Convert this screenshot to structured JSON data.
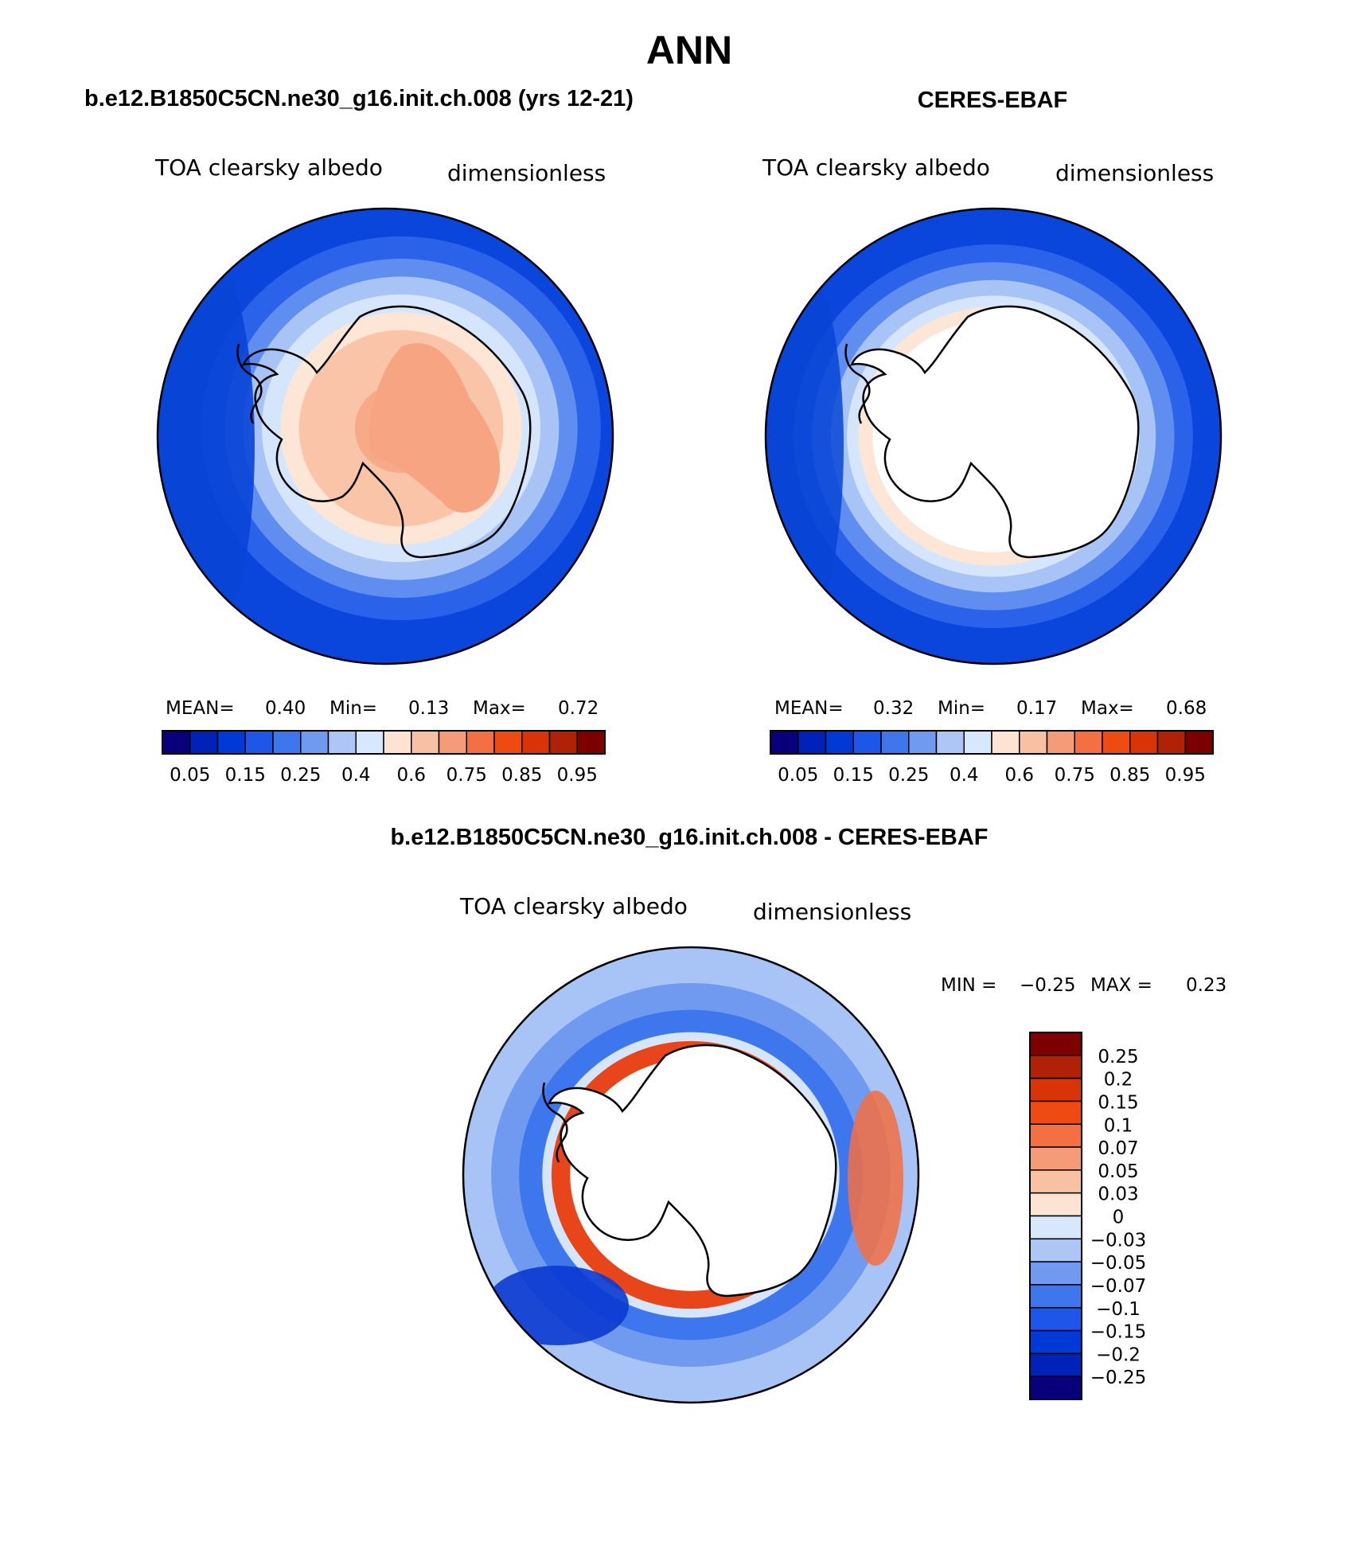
{
  "page": {
    "title": "ANN"
  },
  "panels": [
    {
      "id": "model",
      "header": "b.e12.B1850C5CN.ne30_g16.init.ch.008 (yrs 12-21)",
      "variable": "TOA clearsky albedo",
      "units": "dimensionless",
      "stats": {
        "mean_label": "MEAN=",
        "mean": "0.40",
        "min_label": "Min=",
        "min": "0.13",
        "max_label": "Max=",
        "max": "0.72"
      },
      "colorbar": {
        "orientation": "horizontal",
        "colors": [
          "#08007a",
          "#0022b8",
          "#0039d6",
          "#1f56ea",
          "#3e76ee",
          "#6f9af0",
          "#adc6f5",
          "#d8e8fc",
          "#fde3d2",
          "#f9c1a4",
          "#f69b78",
          "#f46f42",
          "#ed4b12",
          "#d93407",
          "#b02108",
          "#7c0000"
        ],
        "labels": [
          "0.05",
          "0.15",
          "0.25",
          "0.4",
          "0.6",
          "0.75",
          "0.85",
          "0.95"
        ]
      },
      "field_rings": [
        {
          "r": 1.0,
          "color": "#0a46dc"
        },
        {
          "r": 0.86,
          "color": "#2a62ea"
        },
        {
          "r": 0.76,
          "color": "#5f8ef0"
        },
        {
          "r": 0.68,
          "color": "#a8c4f6"
        },
        {
          "r": 0.6,
          "color": "#d5e6fc"
        },
        {
          "r": 0.52,
          "color": "#fde6d5"
        },
        {
          "r": 0.44,
          "color": "#f9c4a8"
        },
        {
          "r": 0.2,
          "color": "#f6aa88"
        }
      ]
    },
    {
      "id": "obs",
      "header": "CERES-EBAF",
      "variable": "TOA clearsky albedo",
      "units": "dimensionless",
      "stats": {
        "mean_label": "MEAN=",
        "mean": "0.32",
        "min_label": "Min=",
        "min": "0.17",
        "max_label": "Max=",
        "max": "0.68"
      },
      "colorbar": {
        "orientation": "horizontal",
        "colors": [
          "#08007a",
          "#0022b8",
          "#0039d6",
          "#1f56ea",
          "#3e76ee",
          "#6f9af0",
          "#adc6f5",
          "#d8e8fc",
          "#fde3d2",
          "#f9c1a4",
          "#f69b78",
          "#f46f42",
          "#ed4b12",
          "#d93407",
          "#b02108",
          "#7c0000"
        ],
        "labels": [
          "0.05",
          "0.15",
          "0.25",
          "0.4",
          "0.6",
          "0.75",
          "0.85",
          "0.95"
        ]
      },
      "field_rings": [
        {
          "r": 1.0,
          "color": "#0a46dc"
        },
        {
          "r": 0.86,
          "color": "#2a62ea"
        },
        {
          "r": 0.78,
          "color": "#5f8ef0"
        },
        {
          "r": 0.7,
          "color": "#a8c4f6"
        },
        {
          "r": 0.63,
          "color": "#d5e6fc"
        },
        {
          "r": 0.58,
          "color": "#fde6d5"
        },
        {
          "r": 0.52,
          "color": "#ffffff"
        }
      ]
    },
    {
      "id": "diff",
      "header": "b.e12.B1850C5CN.ne30_g16.init.ch.008 - CERES-EBAF",
      "variable": "TOA clearsky albedo",
      "units": "dimensionless",
      "stats": {
        "min_label": "MIN =",
        "min": "−0.25",
        "max_label": "MAX =",
        "max": "0.23"
      },
      "colorbar": {
        "orientation": "vertical",
        "colors": [
          "#7c0000",
          "#b02108",
          "#d93407",
          "#ed4b12",
          "#f46f42",
          "#f69b78",
          "#f9c1a4",
          "#fde3d2",
          "#d8e8fc",
          "#adc6f5",
          "#6f9af0",
          "#3e76ee",
          "#1f56ea",
          "#0039d6",
          "#0022b8",
          "#08007a"
        ],
        "labels": [
          "0.25",
          "0.2",
          "0.15",
          "0.1",
          "0.07",
          "0.05",
          "0.03",
          "0",
          "−0.03",
          "−0.05",
          "−0.07",
          "−0.1",
          "−0.15",
          "−0.2",
          "−0.25"
        ]
      },
      "field_rings": [
        {
          "r": 1.0,
          "color": "#a8c4f6"
        },
        {
          "r": 0.86,
          "color": "#6f9af0"
        },
        {
          "r": 0.74,
          "color": "#3e76ee"
        },
        {
          "r": 0.64,
          "color": "#d5e6fc"
        },
        {
          "r": 0.6,
          "color": "#e8451a"
        },
        {
          "r": 0.52,
          "color": "#ffffff"
        }
      ]
    }
  ]
}
